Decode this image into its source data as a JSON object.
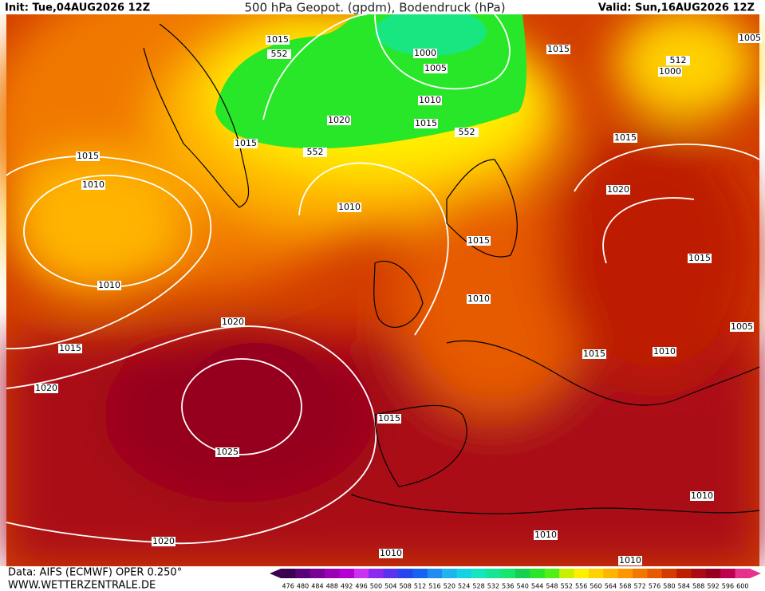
{
  "header": {
    "init": "Init: Tue,04AUG2026 12Z",
    "title": "500 hPa Geopot. (gpdm), Bodendruck (hPa)",
    "valid": "Valid: Sun,16AUG2026 12Z"
  },
  "footer": {
    "source": "Data: AIFS (ECMWF) OPER 0.250°",
    "site": "WWW.WETTERZENTRALE.DE"
  },
  "isobar_labels": [
    "1015",
    "552",
    "1000",
    "1005",
    "1010",
    "1015",
    "1005",
    "1000",
    "512",
    "1020",
    "1015",
    "552",
    "1015",
    "552",
    "1015",
    "1015",
    "1010",
    "1020",
    "1010",
    "1015",
    "1015",
    "1010",
    "1010",
    "1020",
    "1005",
    "1015",
    "1015",
    "1010",
    "1020",
    "1015",
    "1025",
    "1010",
    "1010",
    "1020",
    "1010",
    "1010"
  ],
  "colorbar": {
    "values": [
      476,
      480,
      484,
      488,
      492,
      496,
      500,
      504,
      508,
      512,
      516,
      520,
      524,
      528,
      532,
      536,
      540,
      544,
      548,
      552,
      556,
      560,
      564,
      568,
      572,
      576,
      580,
      584,
      588,
      592,
      596,
      600
    ],
    "colors": [
      "#3c0050",
      "#5a0078",
      "#7a0096",
      "#9a00b4",
      "#b400d2",
      "#c832f0",
      "#8c28f0",
      "#5a32f0",
      "#2846f0",
      "#1464f0",
      "#1e8cf0",
      "#1eb4f0",
      "#14d2e6",
      "#14e6be",
      "#14e696",
      "#14e66e",
      "#14d250",
      "#28e628",
      "#50f014",
      "#c8f000",
      "#fff000",
      "#ffd200",
      "#ffb400",
      "#ff9600",
      "#f07800",
      "#e65a00",
      "#d23c00",
      "#be1e00",
      "#aa0a14",
      "#96001e",
      "#be0050",
      "#e6328c"
    ]
  }
}
